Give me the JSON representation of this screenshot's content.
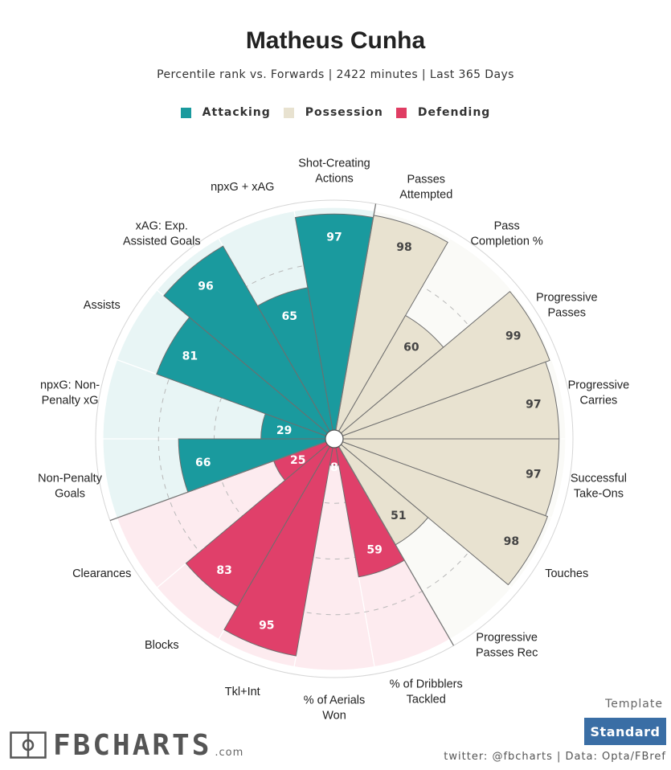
{
  "title": "Matheus Cunha",
  "subtitle": "Percentile rank vs. Forwards | 2422 minutes | Last 365 Days",
  "legend": [
    {
      "label": "Attacking",
      "color": "#1a9a9e"
    },
    {
      "label": "Possession",
      "color": "#e8e2d0"
    },
    {
      "label": "Defending",
      "color": "#e03d63"
    }
  ],
  "colors": {
    "attacking": "#1a9a9e",
    "attacking_bg": "#e8f5f5",
    "possession": "#e8e2d0",
    "possession_bg": "#fafaf7",
    "defending": "#e0406a",
    "defending_bg": "#fdebef"
  },
  "chart_data": {
    "type": "polar-bar",
    "title": "Matheus Cunha",
    "rlim": [
      0,
      100
    ],
    "series": [
      {
        "label": "Shot-Creating Actions",
        "lines": [
          "Shot-Creating",
          "Actions"
        ],
        "value": 97,
        "category": "attacking"
      },
      {
        "label": "Passes Attempted",
        "lines": [
          "Passes",
          "Attempted"
        ],
        "value": 98,
        "category": "possession"
      },
      {
        "label": "Pass Completion %",
        "lines": [
          "Pass",
          "Completion %"
        ],
        "value": 60,
        "category": "possession"
      },
      {
        "label": "Progressive Passes",
        "lines": [
          "Progressive",
          "Passes"
        ],
        "value": 99,
        "category": "possession"
      },
      {
        "label": "Progressive Carries",
        "lines": [
          "Progressive",
          "Carries"
        ],
        "value": 97,
        "category": "possession"
      },
      {
        "label": "Successful Take-Ons",
        "lines": [
          "Successful",
          "Take-Ons"
        ],
        "value": 97,
        "category": "possession"
      },
      {
        "label": "Touches",
        "lines": [
          "Touches"
        ],
        "value": 98,
        "category": "possession"
      },
      {
        "label": "Progressive Passes Rec",
        "lines": [
          "Progressive",
          "Passes Rec"
        ],
        "value": 51,
        "category": "possession"
      },
      {
        "label": "% of Dribblers Tackled",
        "lines": [
          "% of Dribblers",
          "Tackled"
        ],
        "value": 59,
        "category": "defending"
      },
      {
        "label": "% of Aerials Won",
        "lines": [
          "% of Aerials",
          "Won"
        ],
        "value": 8,
        "category": "defending"
      },
      {
        "label": "Tkl+Int",
        "lines": [
          "Tkl+Int"
        ],
        "value": 95,
        "category": "defending"
      },
      {
        "label": "Blocks",
        "lines": [
          "Blocks"
        ],
        "value": 83,
        "category": "defending"
      },
      {
        "label": "Clearances",
        "lines": [
          "Clearances"
        ],
        "value": 25,
        "category": "defending"
      },
      {
        "label": "Non-Penalty Goals",
        "lines": [
          "Non-Penalty",
          "Goals"
        ],
        "value": 66,
        "category": "attacking"
      },
      {
        "label": "npxG: Non-Penalty xG",
        "lines": [
          "npxG: Non-",
          "Penalty xG"
        ],
        "value": 29,
        "category": "attacking"
      },
      {
        "label": "Assists",
        "lines": [
          "Assists"
        ],
        "value": 81,
        "category": "attacking"
      },
      {
        "label": "xAG: Exp. Assisted Goals",
        "lines": [
          "xAG: Exp.",
          "Assisted Goals"
        ],
        "value": 96,
        "category": "attacking"
      },
      {
        "label": "npxG + xAG",
        "lines": [
          "npxG + xAG"
        ],
        "value": 65,
        "category": "attacking"
      }
    ]
  },
  "branding": {
    "name": "FBCHARTS",
    "domain": ".com"
  },
  "template": {
    "label": "Template",
    "button": "Standard"
  },
  "credit": "twitter: @fbcharts | Data: Opta/FBref"
}
